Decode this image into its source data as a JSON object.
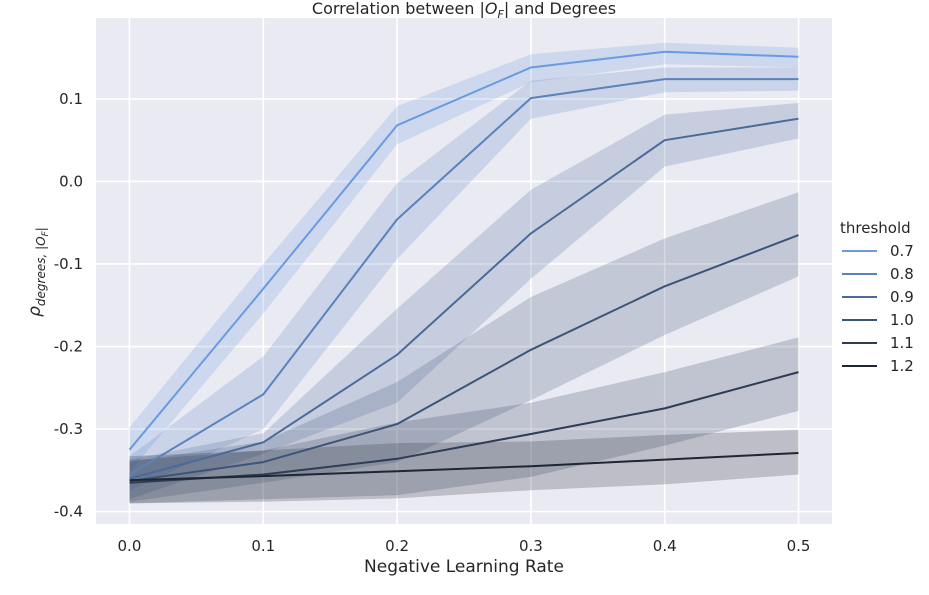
{
  "chart_data": {
    "type": "line",
    "title": "Correlation between |O_F| and Degrees",
    "title_parts": {
      "pre": "Correlation between |",
      "sym": "O",
      "sub": "F",
      "post": "| and Degrees"
    },
    "xlabel": "Negative Learning Rate",
    "ylabel": "ρ_{degrees,|O_F|}",
    "ylabel_parts": {
      "sym": "ρ",
      "sub": "degrees, |O",
      "subsub": "F",
      "subend": "|"
    },
    "x": [
      0.0,
      0.1,
      0.2,
      0.3,
      0.4,
      0.5
    ],
    "x_ticks": [
      "0.0",
      "0.1",
      "0.2",
      "0.3",
      "0.4",
      "0.5"
    ],
    "y_ticks": [
      "0.1",
      "0.0",
      "-0.1",
      "-0.2",
      "-0.3",
      "-0.4"
    ],
    "y_tick_values": [
      0.1,
      0.0,
      -0.1,
      -0.2,
      -0.3,
      -0.4
    ],
    "xlim": [
      -0.025,
      0.525
    ],
    "ylim": [
      -0.415,
      0.198
    ],
    "grid": true,
    "legend_placement": "outside right",
    "legend_title": "threshold",
    "series": [
      {
        "name": "0.7",
        "color": "#6a9ae0",
        "values": [
          -0.325,
          -0.13,
          0.068,
          0.138,
          0.157,
          0.151
        ],
        "lower": [
          -0.352,
          -0.16,
          0.045,
          0.12,
          0.142,
          0.138
        ],
        "upper": [
          -0.298,
          -0.1,
          0.091,
          0.154,
          0.168,
          0.162
        ]
      },
      {
        "name": "0.8",
        "color": "#5a82bd",
        "values": [
          -0.355,
          -0.258,
          -0.046,
          0.101,
          0.124,
          0.124
        ],
        "lower": [
          -0.375,
          -0.3,
          -0.094,
          0.076,
          0.108,
          0.11
        ],
        "upper": [
          -0.333,
          -0.212,
          -0.002,
          0.122,
          0.138,
          0.138
        ]
      },
      {
        "name": "0.9",
        "color": "#4b6a9b",
        "values": [
          -0.36,
          -0.316,
          -0.21,
          -0.063,
          0.05,
          0.076
        ],
        "lower": [
          -0.385,
          -0.33,
          -0.268,
          -0.118,
          0.018,
          0.052
        ],
        "upper": [
          -0.337,
          -0.305,
          -0.154,
          -0.01,
          0.081,
          0.095
        ]
      },
      {
        "name": "1.0",
        "color": "#3c5478",
        "values": [
          -0.363,
          -0.34,
          -0.294,
          -0.204,
          -0.127,
          -0.065
        ],
        "lower": [
          -0.388,
          -0.365,
          -0.34,
          -0.265,
          -0.186,
          -0.115
        ],
        "upper": [
          -0.34,
          -0.315,
          -0.243,
          -0.14,
          -0.069,
          -0.013
        ]
      },
      {
        "name": "1.1",
        "color": "#2e3d55",
        "values": [
          -0.365,
          -0.355,
          -0.336,
          -0.306,
          -0.275,
          -0.231
        ],
        "lower": [
          -0.39,
          -0.385,
          -0.38,
          -0.358,
          -0.32,
          -0.278
        ],
        "upper": [
          -0.338,
          -0.326,
          -0.292,
          -0.268,
          -0.231,
          -0.189
        ]
      },
      {
        "name": "1.2",
        "color": "#1f2633",
        "values": [
          -0.362,
          -0.357,
          -0.351,
          -0.345,
          -0.337,
          -0.329
        ],
        "lower": [
          -0.39,
          -0.388,
          -0.384,
          -0.374,
          -0.367,
          -0.355
        ],
        "upper": [
          -0.333,
          -0.326,
          -0.317,
          -0.315,
          -0.307,
          -0.301
        ]
      }
    ]
  }
}
